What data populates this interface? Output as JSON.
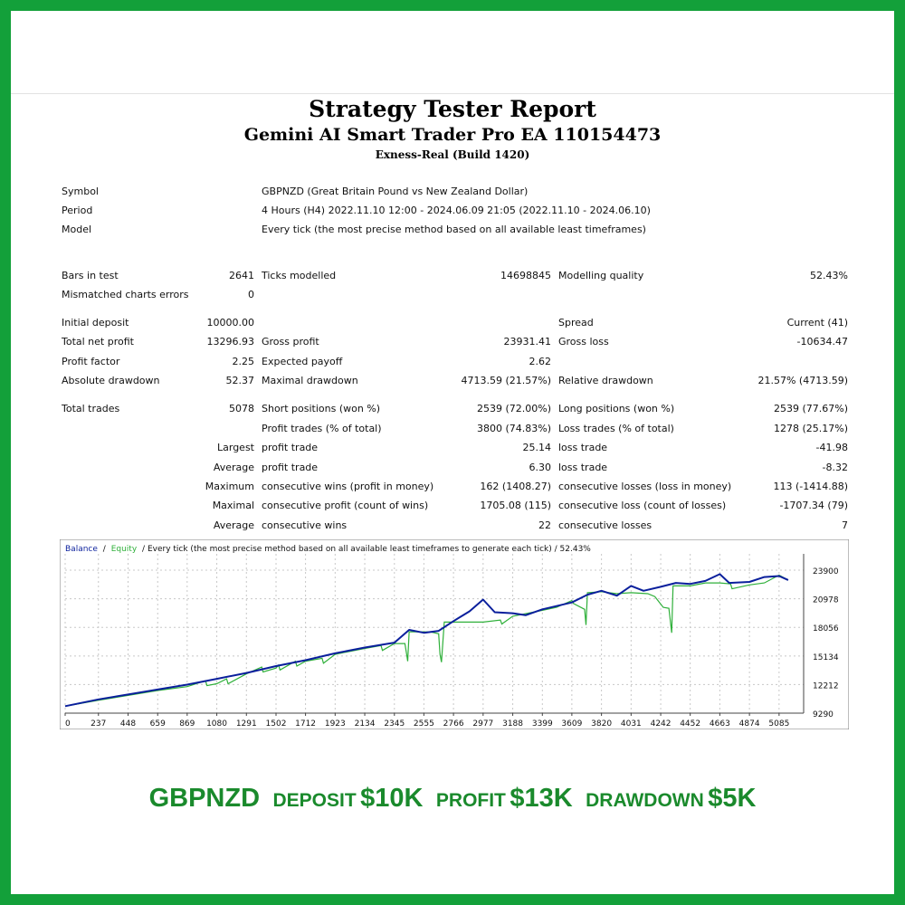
{
  "header": {
    "title": "Strategy Tester Report",
    "subtitle": "Gemini AI Smart Trader Pro EA 110154473",
    "server": "Exness-Real (Build 1420)"
  },
  "info": {
    "symbol_label": "Symbol",
    "symbol_value": "GBPNZD (Great Britain Pound vs New Zealand Dollar)",
    "period_label": "Period",
    "period_value": "4 Hours (H4) 2022.11.10 12:00 - 2024.06.09 21:05 (2022.11.10 - 2024.06.10)",
    "model_label": "Model",
    "model_value": "Every tick (the most precise method based on all available least timeframes)"
  },
  "stats": {
    "bars_label": "Bars in test",
    "bars_value": "2641",
    "ticks_label": "Ticks modelled",
    "ticks_value": "14698845",
    "quality_label": "Modelling quality",
    "quality_value": "52.43%",
    "mismatch_label": "Mismatched charts errors",
    "mismatch_value": "0",
    "deposit_label": "Initial deposit",
    "deposit_value": "10000.00",
    "spread_label": "Spread",
    "spread_value": "Current (41)",
    "netprofit_label": "Total net profit",
    "netprofit_value": "13296.93",
    "grossprofit_label": "Gross profit",
    "grossprofit_value": "23931.41",
    "grossloss_label": "Gross loss",
    "grossloss_value": "-10634.47",
    "pf_label": "Profit factor",
    "pf_value": "2.25",
    "ep_label": "Expected payoff",
    "ep_value": "2.62",
    "absdd_label": "Absolute drawdown",
    "absdd_value": "52.37",
    "maxdd_label": "Maximal drawdown",
    "maxdd_value": "4713.59 (21.57%)",
    "reldd_label": "Relative drawdown",
    "reldd_value": "21.57% (4713.59)",
    "tt_label": "Total trades",
    "tt_value": "5078",
    "short_label": "Short positions (won %)",
    "short_value": "2539 (72.00%)",
    "long_label": "Long positions (won %)",
    "long_value": "2539 (77.67%)",
    "pt_label": "Profit trades (% of total)",
    "pt_value": "3800 (74.83%)",
    "lt_label": "Loss trades (% of total)",
    "lt_value": "1278 (25.17%)",
    "largest_label": "Largest",
    "lpt_label": "profit trade",
    "lpt_value": "25.14",
    "llt_label": "loss trade",
    "llt_value": "-41.98",
    "average_label": "Average",
    "apt_label": "profit trade",
    "apt_value": "6.30",
    "alt_label": "loss trade",
    "alt_value": "-8.32",
    "maximum_label": "Maximum",
    "mcw_label": "consecutive wins (profit in money)",
    "mcw_value": "162 (1408.27)",
    "mcl_label": "consecutive losses (loss in money)",
    "mcl_value": "113 (-1414.88)",
    "maximal_label": "Maximal",
    "mcp_label": "consecutive profit (count of wins)",
    "mcp_value": "1705.08 (115)",
    "mclo_label": "consecutive loss (count of losses)",
    "mclo_value": "-1707.34 (79)",
    "average2_label": "Average",
    "acw_label": "consecutive wins",
    "acw_value": "22",
    "acl_label": "consecutive losses",
    "acl_value": "7"
  },
  "chart_data": {
    "type": "line",
    "header_balance": "Balance",
    "header_sep": "/",
    "header_equity": "Equity",
    "header_rest": "/ Every tick (the most precise method based on all available least timeframes to generate each tick) / 52.43%",
    "colors": {
      "balance": "#0a1f9c",
      "equity": "#2fb03a",
      "grid": "#c8c8c8"
    },
    "x_ticks": [
      "0",
      "237",
      "448",
      "659",
      "869",
      "1080",
      "1291",
      "1502",
      "1712",
      "1923",
      "2134",
      "2345",
      "2555",
      "2766",
      "2977",
      "3188",
      "3399",
      "3609",
      "3820",
      "4031",
      "4242",
      "4452",
      "4663",
      "4874",
      "5085"
    ],
    "y_ticks": [
      "23900",
      "20978",
      "18056",
      "15134",
      "12212",
      "9290"
    ],
    "xlim": [
      0,
      5260
    ],
    "ylim": [
      9290,
      25200
    ],
    "balance": [
      [
        0,
        10000
      ],
      [
        237,
        10700
      ],
      [
        448,
        11200
      ],
      [
        659,
        11700
      ],
      [
        869,
        12200
      ],
      [
        1080,
        12800
      ],
      [
        1291,
        13400
      ],
      [
        1502,
        14100
      ],
      [
        1712,
        14700
      ],
      [
        1923,
        15400
      ],
      [
        2134,
        16000
      ],
      [
        2345,
        16500
      ],
      [
        2450,
        17800
      ],
      [
        2555,
        17500
      ],
      [
        2660,
        17700
      ],
      [
        2766,
        18700
      ],
      [
        2880,
        19700
      ],
      [
        2977,
        20900
      ],
      [
        3060,
        19600
      ],
      [
        3188,
        19500
      ],
      [
        3280,
        19300
      ],
      [
        3399,
        19900
      ],
      [
        3609,
        20600
      ],
      [
        3720,
        21400
      ],
      [
        3820,
        21800
      ],
      [
        3930,
        21300
      ],
      [
        4031,
        22300
      ],
      [
        4120,
        21800
      ],
      [
        4242,
        22200
      ],
      [
        4350,
        22600
      ],
      [
        4452,
        22500
      ],
      [
        4560,
        22800
      ],
      [
        4663,
        23500
      ],
      [
        4730,
        22600
      ],
      [
        4874,
        22700
      ],
      [
        4980,
        23200
      ],
      [
        5085,
        23300
      ],
      [
        5150,
        22900
      ]
    ],
    "equity": [
      [
        0,
        10000
      ],
      [
        237,
        10600
      ],
      [
        448,
        11100
      ],
      [
        659,
        11600
      ],
      [
        869,
        12000
      ],
      [
        1000,
        12600
      ],
      [
        1010,
        12100
      ],
      [
        1080,
        12300
      ],
      [
        1150,
        12800
      ],
      [
        1160,
        12300
      ],
      [
        1291,
        13300
      ],
      [
        1400,
        14000
      ],
      [
        1410,
        13500
      ],
      [
        1502,
        13900
      ],
      [
        1520,
        14200
      ],
      [
        1530,
        13700
      ],
      [
        1640,
        14600
      ],
      [
        1650,
        14100
      ],
      [
        1712,
        14600
      ],
      [
        1830,
        14900
      ],
      [
        1840,
        14400
      ],
      [
        1923,
        15300
      ],
      [
        2134,
        15900
      ],
      [
        2250,
        16200
      ],
      [
        2260,
        15700
      ],
      [
        2345,
        16400
      ],
      [
        2420,
        16400
      ],
      [
        2430,
        15500
      ],
      [
        2440,
        14600
      ],
      [
        2450,
        17600
      ],
      [
        2600,
        17600
      ],
      [
        2660,
        17400
      ],
      [
        2670,
        15300
      ],
      [
        2680,
        14500
      ],
      [
        2700,
        18600
      ],
      [
        2977,
        18600
      ],
      [
        3100,
        18800
      ],
      [
        3110,
        18400
      ],
      [
        3188,
        19200
      ],
      [
        3399,
        19800
      ],
      [
        3500,
        20100
      ],
      [
        3609,
        20800
      ],
      [
        3620,
        20500
      ],
      [
        3700,
        19900
      ],
      [
        3710,
        18300
      ],
      [
        3720,
        21600
      ],
      [
        3820,
        21700
      ],
      [
        3930,
        21500
      ],
      [
        4031,
        21600
      ],
      [
        4150,
        21500
      ],
      [
        4200,
        21200
      ],
      [
        4260,
        20100
      ],
      [
        4300,
        20000
      ],
      [
        4320,
        17500
      ],
      [
        4330,
        22300
      ],
      [
        4452,
        22300
      ],
      [
        4560,
        22600
      ],
      [
        4663,
        22600
      ],
      [
        4740,
        22500
      ],
      [
        4750,
        22000
      ],
      [
        4874,
        22400
      ],
      [
        4980,
        22600
      ],
      [
        5085,
        23400
      ],
      [
        5150,
        22900
      ]
    ]
  },
  "footer": {
    "symbol": "GBPNZD",
    "deposit_label": "DEPOSIT",
    "deposit_value": "$10K",
    "profit_label": "PROFIT",
    "profit_value": "$13K",
    "drawdown_label": "DRAWDOWN",
    "drawdown_value": "$5K"
  }
}
